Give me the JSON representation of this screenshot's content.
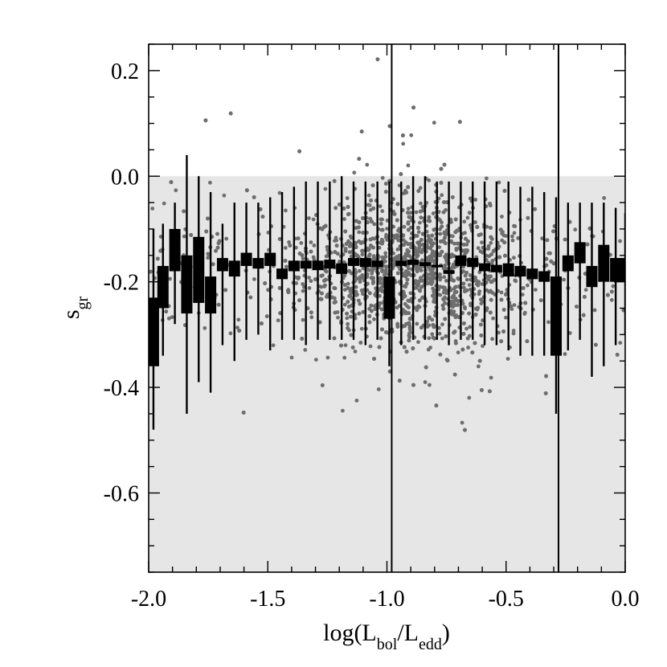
{
  "chart_data": {
    "type": "scatter",
    "xlabel": {
      "base": "log(L",
      "sub1": "bol",
      "mid": "/L",
      "sub2": "edd",
      "end": ")"
    },
    "ylabel": {
      "base": "s",
      "sub": "gr"
    },
    "xlim": [
      -2.0,
      0.0
    ],
    "ylim": [
      -0.75,
      0.25
    ],
    "x_ticks": [
      -2.0,
      -1.5,
      -1.0,
      -0.5,
      0.0
    ],
    "x_tick_labels": [
      "-2.0",
      "-1.5",
      "-1.0",
      "-0.5",
      "0.0"
    ],
    "y_ticks": [
      0.2,
      0.0,
      -0.2,
      -0.4,
      -0.6
    ],
    "y_tick_labels": [
      "0.2",
      "0.0",
      "-0.2",
      "-0.4",
      "-0.6"
    ],
    "shaded_region": {
      "y_max": 0.0
    },
    "vertical_lines": [
      -0.98,
      -0.28
    ],
    "scatter": {
      "n_points": 3500,
      "color": "#6e6e6e",
      "center_y": -0.18,
      "spread_y": 0.09,
      "x_density_peak": -0.9
    },
    "binned": {
      "x": [
        -1.98,
        -1.94,
        -1.89,
        -1.84,
        -1.79,
        -1.74,
        -1.69,
        -1.64,
        -1.59,
        -1.54,
        -1.49,
        -1.44,
        -1.39,
        -1.34,
        -1.29,
        -1.24,
        -1.19,
        -1.14,
        -1.09,
        -1.04,
        -0.99,
        -0.94,
        -0.89,
        -0.84,
        -0.79,
        -0.74,
        -0.69,
        -0.64,
        -0.59,
        -0.54,
        -0.49,
        -0.44,
        -0.39,
        -0.34,
        -0.29,
        -0.24,
        -0.19,
        -0.14,
        -0.09,
        -0.04,
        0.0
      ],
      "q_low": [
        -0.36,
        -0.25,
        -0.18,
        -0.26,
        -0.24,
        -0.26,
        -0.18,
        -0.19,
        -0.17,
        -0.175,
        -0.17,
        -0.195,
        -0.18,
        -0.175,
        -0.178,
        -0.175,
        -0.185,
        -0.17,
        -0.172,
        -0.172,
        -0.27,
        -0.17,
        -0.168,
        -0.17,
        -0.172,
        -0.185,
        -0.17,
        -0.172,
        -0.18,
        -0.182,
        -0.19,
        -0.19,
        -0.195,
        -0.2,
        -0.34,
        -0.18,
        -0.165,
        -0.21,
        -0.2,
        -0.2,
        -0.2
      ],
      "q_high": [
        -0.23,
        -0.17,
        -0.1,
        -0.15,
        -0.115,
        -0.19,
        -0.155,
        -0.16,
        -0.145,
        -0.155,
        -0.145,
        -0.175,
        -0.16,
        -0.16,
        -0.16,
        -0.158,
        -0.165,
        -0.155,
        -0.155,
        -0.16,
        -0.19,
        -0.16,
        -0.158,
        -0.163,
        -0.168,
        -0.178,
        -0.15,
        -0.155,
        -0.165,
        -0.168,
        -0.165,
        -0.17,
        -0.175,
        -0.18,
        -0.19,
        -0.15,
        -0.125,
        -0.17,
        -0.13,
        -0.155,
        -0.155
      ],
      "w_low": [
        -0.48,
        -0.34,
        -0.28,
        -0.45,
        -0.39,
        -0.41,
        -0.32,
        -0.35,
        -0.31,
        -0.3,
        -0.33,
        -0.31,
        -0.31,
        -0.32,
        -0.31,
        -0.31,
        -0.31,
        -0.31,
        -0.32,
        -0.31,
        -0.36,
        -0.32,
        -0.31,
        -0.31,
        -0.31,
        -0.32,
        -0.31,
        -0.31,
        -0.32,
        -0.32,
        -0.33,
        -0.34,
        -0.34,
        -0.34,
        -0.45,
        -0.33,
        -0.31,
        -0.38,
        -0.36,
        -0.32,
        -0.3
      ],
      "w_high": [
        -0.1,
        -0.09,
        -0.05,
        0.04,
        0.0,
        -0.03,
        -0.09,
        -0.05,
        -0.05,
        -0.05,
        -0.04,
        -0.03,
        -0.02,
        -0.01,
        -0.01,
        -0.01,
        0.0,
        -0.01,
        -0.01,
        -0.01,
        -0.01,
        -0.01,
        0.0,
        0.0,
        -0.01,
        -0.01,
        -0.01,
        -0.01,
        -0.01,
        -0.01,
        -0.01,
        -0.02,
        -0.02,
        -0.03,
        -0.04,
        -0.05,
        -0.05,
        -0.05,
        -0.05,
        -0.06,
        -0.07
      ]
    }
  }
}
